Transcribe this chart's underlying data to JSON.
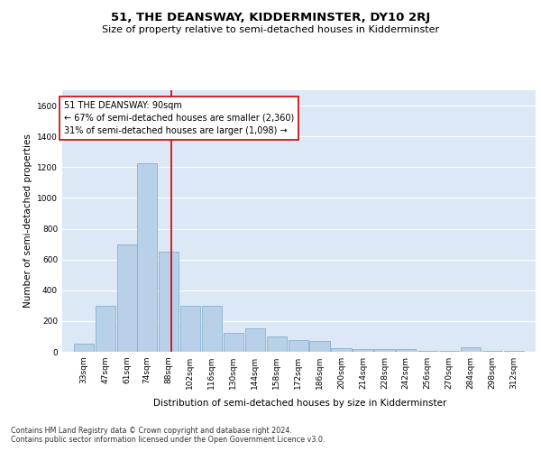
{
  "title": "51, THE DEANSWAY, KIDDERMINSTER, DY10 2RJ",
  "subtitle": "Size of property relative to semi-detached houses in Kidderminster",
  "xlabel": "Distribution of semi-detached houses by size in Kidderminster",
  "ylabel": "Number of semi-detached properties",
  "bar_color": "#b8d0e8",
  "bar_edge_color": "#7aaac8",
  "background_color": "#dce8f5",
  "grid_color": "#ffffff",
  "annotation_text": "51 THE DEANSWAY: 90sqm\n← 67% of semi-detached houses are smaller (2,360)\n31% of semi-detached houses are larger (1,098) →",
  "property_line_x": 90,
  "property_line_color": "#cc0000",
  "annotation_box_color": "#ffffff",
  "annotation_box_edge": "#cc0000",
  "bins": [
    33,
    47,
    61,
    74,
    88,
    102,
    116,
    130,
    144,
    158,
    172,
    186,
    200,
    214,
    228,
    242,
    256,
    270,
    284,
    298,
    312
  ],
  "heights": [
    50,
    300,
    700,
    1225,
    650,
    300,
    300,
    125,
    150,
    100,
    75,
    70,
    25,
    20,
    20,
    15,
    5,
    5,
    30,
    5,
    5
  ],
  "ylim": [
    0,
    1700
  ],
  "yticks": [
    0,
    200,
    400,
    600,
    800,
    1000,
    1200,
    1400,
    1600
  ],
  "footnote": "Contains HM Land Registry data © Crown copyright and database right 2024.\nContains public sector information licensed under the Open Government Licence v3.0.",
  "title_fontsize": 9.5,
  "subtitle_fontsize": 8,
  "axis_label_fontsize": 7.5,
  "tick_fontsize": 6.5,
  "annotation_fontsize": 7,
  "footnote_fontsize": 5.8
}
